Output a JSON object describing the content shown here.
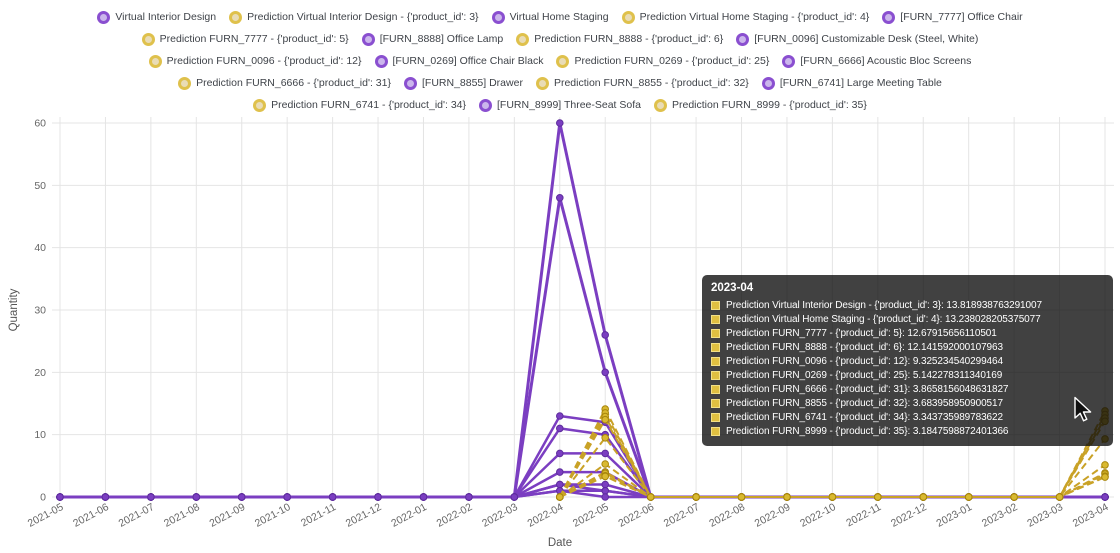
{
  "colors": {
    "actual": "#7b3ec1",
    "actual_marker_stroke": "#5e2d9d",
    "prediction": "#c9a227",
    "prediction_marker_fill": "#d9b930",
    "prediction_marker_stroke": "#a8860b",
    "grid": "#e4e4e4",
    "tick_text": "#666666",
    "legend_text": "#3f4349",
    "tooltip_background": "rgba(12,12,12,0.78)"
  },
  "icons": {
    "legend_actual_marker": "circle-marker",
    "legend_prediction_marker": "circle-marker",
    "tooltip_swatch": "square-swatch",
    "cursor": "mouse-pointer-arrow"
  },
  "legend": {
    "rows": [
      [
        {
          "label": "Virtual Interior Design",
          "type": "actual"
        },
        {
          "label": "Prediction Virtual Interior Design - {'product_id': 3}",
          "type": "prediction"
        },
        {
          "label": "Virtual Home Staging",
          "type": "actual"
        },
        {
          "label": "Prediction Virtual Home Staging - {'product_id': 4}",
          "type": "prediction"
        },
        {
          "label": "[FURN_7777] Office Chair",
          "type": "actual"
        }
      ],
      [
        {
          "label": "Prediction FURN_7777 - {'product_id': 5}",
          "type": "prediction"
        },
        {
          "label": "[FURN_8888] Office Lamp",
          "type": "actual"
        },
        {
          "label": "Prediction FURN_8888 - {'product_id': 6}",
          "type": "prediction"
        },
        {
          "label": "[FURN_0096] Customizable Desk (Steel, White)",
          "type": "actual"
        }
      ],
      [
        {
          "label": "Prediction FURN_0096 - {'product_id': 12}",
          "type": "prediction"
        },
        {
          "label": "[FURN_0269] Office Chair Black",
          "type": "actual"
        },
        {
          "label": "Prediction FURN_0269 - {'product_id': 25}",
          "type": "prediction"
        },
        {
          "label": "[FURN_6666] Acoustic Bloc Screens",
          "type": "actual"
        }
      ],
      [
        {
          "label": "Prediction FURN_6666 - {'product_id': 31}",
          "type": "prediction"
        },
        {
          "label": "[FURN_8855] Drawer",
          "type": "actual"
        },
        {
          "label": "Prediction FURN_8855 - {'product_id': 32}",
          "type": "prediction"
        },
        {
          "label": "[FURN_6741] Large Meeting Table",
          "type": "actual"
        }
      ],
      [
        {
          "label": "Prediction FURN_6741 - {'product_id': 34}",
          "type": "prediction"
        },
        {
          "label": "[FURN_8999] Three-Seat Sofa",
          "type": "actual"
        },
        {
          "label": "Prediction FURN_8999 - {'product_id': 35}",
          "type": "prediction"
        }
      ]
    ]
  },
  "tooltip": {
    "title": "2023-04",
    "rows": [
      {
        "label": "Prediction Virtual Interior Design - {'product_id': 3}",
        "value": "13.818938763291007"
      },
      {
        "label": "Prediction Virtual Home Staging - {'product_id': 4}",
        "value": "13.238028205375077"
      },
      {
        "label": "Prediction FURN_7777 - {'product_id': 5}",
        "value": "12.67915656110501"
      },
      {
        "label": "Prediction FURN_8888 - {'product_id': 6}",
        "value": "12.141592000107963"
      },
      {
        "label": "Prediction FURN_0096 - {'product_id': 12}",
        "value": "9.325234540299464"
      },
      {
        "label": "Prediction FURN_0269 - {'product_id': 25}",
        "value": "5.142278311340169"
      },
      {
        "label": "Prediction FURN_6666 - {'product_id': 31}",
        "value": "3.8658156048631827"
      },
      {
        "label": "Prediction FURN_8855 - {'product_id': 32}",
        "value": "3.683958950900517"
      },
      {
        "label": "Prediction FURN_6741 - {'product_id': 34}",
        "value": "3.343735989783622"
      },
      {
        "label": "Prediction FURN_8999 - {'product_id': 35}",
        "value": "3.1847598872401366"
      }
    ]
  },
  "chart_data": {
    "type": "line",
    "title": "",
    "xlabel": "Date",
    "ylabel": "Quantity",
    "ylim": [
      0,
      60
    ],
    "yticks": [
      0,
      10,
      20,
      30,
      40,
      50,
      60
    ],
    "grid": true,
    "legend_position": "top",
    "x": [
      "2021-05",
      "2021-06",
      "2021-07",
      "2021-08",
      "2021-09",
      "2021-10",
      "2021-11",
      "2021-12",
      "2022-01",
      "2022-02",
      "2022-03",
      "2022-04",
      "2022-05",
      "2022-06",
      "2022-07",
      "2022-08",
      "2022-09",
      "2022-10",
      "2022-11",
      "2022-12",
      "2023-01",
      "2023-02",
      "2023-03",
      "2023-04"
    ],
    "series": [
      {
        "name": "Virtual Interior Design",
        "role": "actual",
        "color": "#7b3ec1",
        "marker_stroke": "#5e2d9d",
        "dash": "solid",
        "width": 3,
        "values": [
          0,
          0,
          0,
          0,
          0,
          0,
          0,
          0,
          0,
          0,
          0,
          60,
          26,
          0,
          0,
          0,
          0,
          0,
          0,
          0,
          0,
          0,
          0,
          0
        ]
      },
      {
        "name": "Virtual Home Staging",
        "role": "actual",
        "color": "#7b3ec1",
        "marker_stroke": "#5e2d9d",
        "dash": "solid",
        "width": 3,
        "values": [
          0,
          0,
          0,
          0,
          0,
          0,
          0,
          0,
          0,
          0,
          0,
          48,
          20,
          0,
          0,
          0,
          0,
          0,
          0,
          0,
          0,
          0,
          0,
          0
        ]
      },
      {
        "name": "[FURN_7777] Office Chair",
        "role": "actual",
        "color": "#7b3ec1",
        "marker_stroke": "#5e2d9d",
        "dash": "solid",
        "width": 2.5,
        "values": [
          0,
          0,
          0,
          0,
          0,
          0,
          0,
          0,
          0,
          0,
          0,
          13,
          12,
          0,
          0,
          0,
          0,
          0,
          0,
          0,
          0,
          0,
          0,
          0
        ]
      },
      {
        "name": "[FURN_8888] Office Lamp",
        "role": "actual",
        "color": "#7b3ec1",
        "marker_stroke": "#5e2d9d",
        "dash": "solid",
        "width": 2.5,
        "values": [
          0,
          0,
          0,
          0,
          0,
          0,
          0,
          0,
          0,
          0,
          0,
          11,
          10,
          0,
          0,
          0,
          0,
          0,
          0,
          0,
          0,
          0,
          0,
          0
        ]
      },
      {
        "name": "[FURN_0096] Customizable Desk (Steel, White)",
        "role": "actual",
        "color": "#7b3ec1",
        "marker_stroke": "#5e2d9d",
        "dash": "solid",
        "width": 2.5,
        "values": [
          0,
          0,
          0,
          0,
          0,
          0,
          0,
          0,
          0,
          0,
          0,
          7,
          7,
          0,
          0,
          0,
          0,
          0,
          0,
          0,
          0,
          0,
          0,
          0
        ]
      },
      {
        "name": "[FURN_0269] Office Chair Black",
        "role": "actual",
        "color": "#7b3ec1",
        "marker_stroke": "#5e2d9d",
        "dash": "solid",
        "width": 2.5,
        "values": [
          0,
          0,
          0,
          0,
          0,
          0,
          0,
          0,
          0,
          0,
          0,
          4,
          4,
          0,
          0,
          0,
          0,
          0,
          0,
          0,
          0,
          0,
          0,
          0
        ]
      },
      {
        "name": "[FURN_6666] Acoustic Bloc Screens",
        "role": "actual",
        "color": "#7b3ec1",
        "marker_stroke": "#5e2d9d",
        "dash": "solid",
        "width": 2.5,
        "values": [
          0,
          0,
          0,
          0,
          0,
          0,
          0,
          0,
          0,
          0,
          0,
          2,
          2,
          0,
          0,
          0,
          0,
          0,
          0,
          0,
          0,
          0,
          0,
          0
        ]
      },
      {
        "name": "[FURN_8855] Drawer",
        "role": "actual",
        "color": "#7b3ec1",
        "marker_stroke": "#5e2d9d",
        "dash": "solid",
        "width": 2.5,
        "values": [
          0,
          0,
          0,
          0,
          0,
          0,
          0,
          0,
          0,
          0,
          0,
          2,
          1,
          0,
          0,
          0,
          0,
          0,
          0,
          0,
          0,
          0,
          0,
          0
        ]
      },
      {
        "name": "[FURN_6741] Large Meeting Table",
        "role": "actual",
        "color": "#7b3ec1",
        "marker_stroke": "#5e2d9d",
        "dash": "solid",
        "width": 2.5,
        "values": [
          0,
          0,
          0,
          0,
          0,
          0,
          0,
          0,
          0,
          0,
          0,
          1,
          1,
          0,
          0,
          0,
          0,
          0,
          0,
          0,
          0,
          0,
          0,
          0
        ]
      },
      {
        "name": "[FURN_8999] Three-Seat Sofa",
        "role": "actual",
        "color": "#7b3ec1",
        "marker_stroke": "#5e2d9d",
        "dash": "solid",
        "width": 2.5,
        "values": [
          0,
          0,
          0,
          0,
          0,
          0,
          0,
          0,
          0,
          0,
          0,
          1,
          0,
          0,
          0,
          0,
          0,
          0,
          0,
          0,
          0,
          0,
          0,
          0
        ]
      },
      {
        "name": "Prediction Virtual Interior Design - {'product_id': 3}",
        "role": "prediction",
        "color": "#c9a227",
        "marker_fill": "#d9b930",
        "marker_stroke": "#a8860b",
        "dash": "dashed",
        "width": 2,
        "values": [
          null,
          null,
          null,
          null,
          null,
          null,
          null,
          null,
          null,
          null,
          null,
          0,
          14.1,
          0,
          0,
          0,
          0,
          0,
          0,
          0,
          0,
          0,
          0,
          13.818938763291007
        ]
      },
      {
        "name": "Prediction Virtual Home Staging - {'product_id': 4}",
        "role": "prediction",
        "color": "#c9a227",
        "marker_fill": "#d9b930",
        "marker_stroke": "#a8860b",
        "dash": "dashed",
        "width": 2,
        "values": [
          null,
          null,
          null,
          null,
          null,
          null,
          null,
          null,
          null,
          null,
          null,
          0,
          13.5,
          0,
          0,
          0,
          0,
          0,
          0,
          0,
          0,
          0,
          0,
          13.238028205375077
        ]
      },
      {
        "name": "Prediction FURN_7777 - {'product_id': 5}",
        "role": "prediction",
        "color": "#c9a227",
        "marker_fill": "#d9b930",
        "marker_stroke": "#a8860b",
        "dash": "dashed",
        "width": 2,
        "values": [
          null,
          null,
          null,
          null,
          null,
          null,
          null,
          null,
          null,
          null,
          null,
          0,
          12.9,
          0,
          0,
          0,
          0,
          0,
          0,
          0,
          0,
          0,
          0,
          12.67915656110501
        ]
      },
      {
        "name": "Prediction FURN_8888 - {'product_id': 6}",
        "role": "prediction",
        "color": "#c9a227",
        "marker_fill": "#d9b930",
        "marker_stroke": "#a8860b",
        "dash": "dashed",
        "width": 2,
        "values": [
          null,
          null,
          null,
          null,
          null,
          null,
          null,
          null,
          null,
          null,
          null,
          0,
          12.4,
          0,
          0,
          0,
          0,
          0,
          0,
          0,
          0,
          0,
          0,
          12.141592000107963
        ]
      },
      {
        "name": "Prediction FURN_0096 - {'product_id': 12}",
        "role": "prediction",
        "color": "#c9a227",
        "marker_fill": "#d9b930",
        "marker_stroke": "#a8860b",
        "dash": "dashed",
        "width": 2,
        "values": [
          null,
          null,
          null,
          null,
          null,
          null,
          null,
          null,
          null,
          null,
          null,
          0,
          9.5,
          0,
          0,
          0,
          0,
          0,
          0,
          0,
          0,
          0,
          0,
          9.325234540299464
        ]
      },
      {
        "name": "Prediction FURN_0269 - {'product_id': 25}",
        "role": "prediction",
        "color": "#c9a227",
        "marker_fill": "#d9b930",
        "marker_stroke": "#a8860b",
        "dash": "dashed",
        "width": 2,
        "values": [
          null,
          null,
          null,
          null,
          null,
          null,
          null,
          null,
          null,
          null,
          null,
          0,
          5.3,
          0,
          0,
          0,
          0,
          0,
          0,
          0,
          0,
          0,
          0,
          5.142278311340169
        ]
      },
      {
        "name": "Prediction FURN_6666 - {'product_id': 31}",
        "role": "prediction",
        "color": "#c9a227",
        "marker_fill": "#d9b930",
        "marker_stroke": "#a8860b",
        "dash": "dashed",
        "width": 2,
        "values": [
          null,
          null,
          null,
          null,
          null,
          null,
          null,
          null,
          null,
          null,
          null,
          0,
          4.0,
          0,
          0,
          0,
          0,
          0,
          0,
          0,
          0,
          0,
          0,
          3.8658156048631827
        ]
      },
      {
        "name": "Prediction FURN_8855 - {'product_id': 32}",
        "role": "prediction",
        "color": "#c9a227",
        "marker_fill": "#d9b930",
        "marker_stroke": "#a8860b",
        "dash": "dashed",
        "width": 2,
        "values": [
          null,
          null,
          null,
          null,
          null,
          null,
          null,
          null,
          null,
          null,
          null,
          0,
          3.8,
          0,
          0,
          0,
          0,
          0,
          0,
          0,
          0,
          0,
          0,
          3.683958950900517
        ]
      },
      {
        "name": "Prediction FURN_6741 - {'product_id': 34}",
        "role": "prediction",
        "color": "#c9a227",
        "marker_fill": "#d9b930",
        "marker_stroke": "#a8860b",
        "dash": "dashed",
        "width": 2,
        "values": [
          null,
          null,
          null,
          null,
          null,
          null,
          null,
          null,
          null,
          null,
          null,
          0,
          3.4,
          0,
          0,
          0,
          0,
          0,
          0,
          0,
          0,
          0,
          0,
          3.343735989783622
        ]
      },
      {
        "name": "Prediction FURN_8999 - {'product_id': 35}",
        "role": "prediction",
        "color": "#c9a227",
        "marker_fill": "#d9b930",
        "marker_stroke": "#a8860b",
        "dash": "dashed",
        "width": 2,
        "values": [
          null,
          null,
          null,
          null,
          null,
          null,
          null,
          null,
          null,
          null,
          null,
          0,
          3.3,
          0,
          0,
          0,
          0,
          0,
          0,
          0,
          0,
          0,
          0,
          3.1847598872401366
        ]
      }
    ]
  }
}
